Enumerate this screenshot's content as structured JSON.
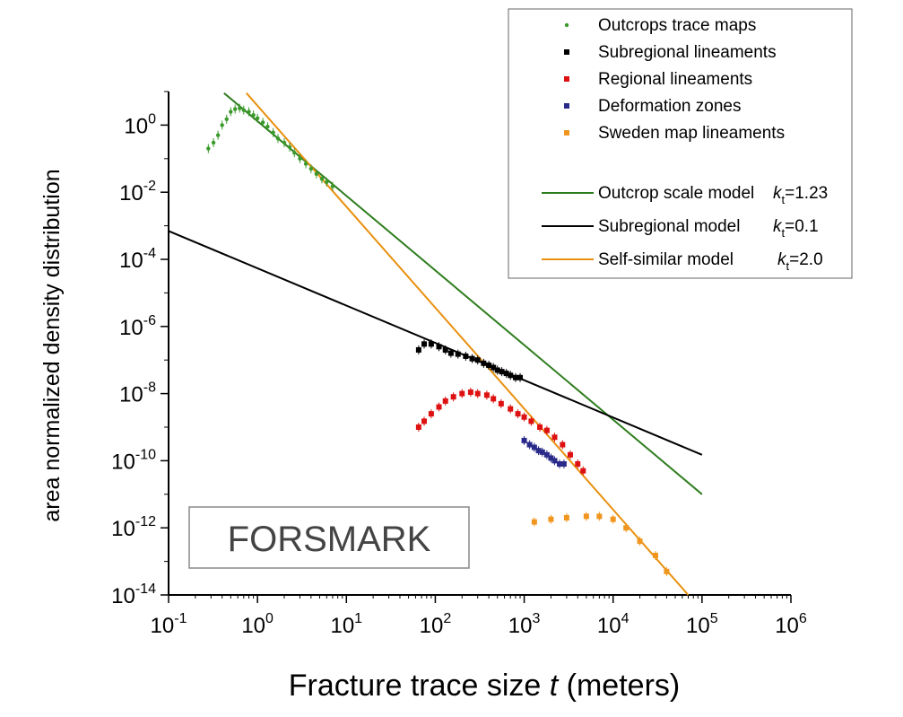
{
  "chart_data": {
    "type": "scatter",
    "xlabel_main": "Fracture trace size ",
    "xlabel_var": "t",
    "xlabel_unit": " (meters)",
    "ylabel": "area normalized density distribution",
    "xscale": "log",
    "yscale": "log",
    "xlim": [
      0.1,
      1000000
    ],
    "ylim": [
      1e-14,
      10
    ],
    "x_ticks": [
      {
        "base": "10",
        "exp": "-1"
      },
      {
        "base": "10",
        "exp": "0"
      },
      {
        "base": "10",
        "exp": "1"
      },
      {
        "base": "10",
        "exp": "2"
      },
      {
        "base": "10",
        "exp": "3"
      },
      {
        "base": "10",
        "exp": "4"
      },
      {
        "base": "10",
        "exp": "5"
      },
      {
        "base": "10",
        "exp": "6"
      }
    ],
    "y_ticks": [
      {
        "base": "10",
        "exp": "0"
      },
      {
        "base": "10",
        "exp": "-2"
      },
      {
        "base": "10",
        "exp": "-4"
      },
      {
        "base": "10",
        "exp": "-6"
      },
      {
        "base": "10",
        "exp": "-8"
      },
      {
        "base": "10",
        "exp": "-10"
      },
      {
        "base": "10",
        "exp": "-12"
      },
      {
        "base": "10",
        "exp": "-14"
      }
    ],
    "legend_placement": "top-right",
    "annotation": "FORSMARK",
    "grid": false,
    "series": [
      {
        "name": "Outcrops trace maps",
        "color": "#3a9a2a",
        "marker": "dot",
        "x": [
          0.28,
          0.32,
          0.36,
          0.4,
          0.45,
          0.5,
          0.56,
          0.63,
          0.7,
          0.8,
          0.9,
          1.0,
          1.15,
          1.3,
          1.5,
          1.7,
          2.0,
          2.3,
          2.6,
          3.0,
          3.5,
          4.0,
          4.6,
          5.3,
          6.0,
          7.0
        ],
        "y": [
          0.2,
          0.3,
          0.5,
          1.0,
          1.5,
          2.5,
          3.0,
          3.2,
          2.8,
          2.5,
          2.0,
          1.6,
          1.2,
          0.9,
          0.6,
          0.4,
          0.3,
          0.22,
          0.15,
          0.1,
          0.07,
          0.05,
          0.035,
          0.025,
          0.02,
          0.015
        ]
      },
      {
        "name": "Subregional lineaments",
        "color": "#000000",
        "marker": "square",
        "x": [
          65,
          75,
          90,
          110,
          130,
          150,
          180,
          220,
          260,
          300,
          350,
          400,
          450,
          500,
          560,
          630,
          700,
          800,
          900
        ],
        "y": [
          2e-07,
          3e-07,
          3e-07,
          2.5e-07,
          2e-07,
          1.6e-07,
          1.5e-07,
          1.3e-07,
          1.1e-07,
          1e-07,
          8e-08,
          7e-08,
          6e-08,
          5e-08,
          4.5e-08,
          4e-08,
          3.5e-08,
          3e-08,
          3e-08
        ]
      },
      {
        "name": "Regional lineaments",
        "color": "#dd1111",
        "marker": "square",
        "x": [
          65,
          75,
          90,
          110,
          130,
          160,
          200,
          250,
          300,
          380,
          450,
          550,
          700,
          850,
          1000,
          1200,
          1500,
          1800,
          2200,
          2700,
          3300,
          4000,
          4600
        ],
        "y": [
          1e-09,
          1.5e-09,
          2.5e-09,
          4e-09,
          6e-09,
          8e-09,
          1e-08,
          1.1e-08,
          1e-08,
          9e-09,
          7e-09,
          5e-09,
          3.5e-09,
          2.5e-09,
          2e-09,
          1.5e-09,
          1e-09,
          8e-10,
          5e-10,
          3e-10,
          1.5e-10,
          8e-11,
          5e-11
        ]
      },
      {
        "name": "Deformation zones",
        "color": "#2a2a8a",
        "marker": "square",
        "x": [
          1000,
          1150,
          1300,
          1450,
          1600,
          1800,
          2000,
          2200,
          2500,
          2800
        ],
        "y": [
          4e-10,
          3e-10,
          2.5e-10,
          2e-10,
          1.8e-10,
          1.5e-10,
          1.2e-10,
          1e-10,
          8e-11,
          8e-11
        ]
      },
      {
        "name": "Sweden map lineaments",
        "color": "#f0961e",
        "marker": "square",
        "x": [
          1300,
          2000,
          3000,
          5000,
          7000,
          10000,
          14000,
          20000,
          30000,
          40000
        ],
        "y": [
          1.5e-12,
          1.8e-12,
          2e-12,
          2.2e-12,
          2.2e-12,
          1.8e-12,
          1e-12,
          4e-13,
          1.5e-13,
          5e-14
        ]
      }
    ],
    "models": [
      {
        "name": "Outcrop scale model",
        "param_symbol": "k",
        "param_sub": "t",
        "param_value": "=1.23",
        "color": "#2e7d1e",
        "x": [
          0.42,
          100000
        ],
        "y": [
          9,
          1e-11
        ]
      },
      {
        "name": "Subregional model",
        "param_symbol": "k",
        "param_sub": "t",
        "param_value": "=0.1",
        "color": "#000000",
        "x": [
          0.1,
          100000
        ],
        "y": [
          0.0007,
          1.5e-10
        ]
      },
      {
        "name": "Self-similar model",
        "param_symbol": "k",
        "param_sub": "t",
        "param_value": "=2.0",
        "color": "#e8900e",
        "x": [
          0.75,
          70000
        ],
        "y": [
          9,
          1e-14
        ]
      }
    ]
  }
}
